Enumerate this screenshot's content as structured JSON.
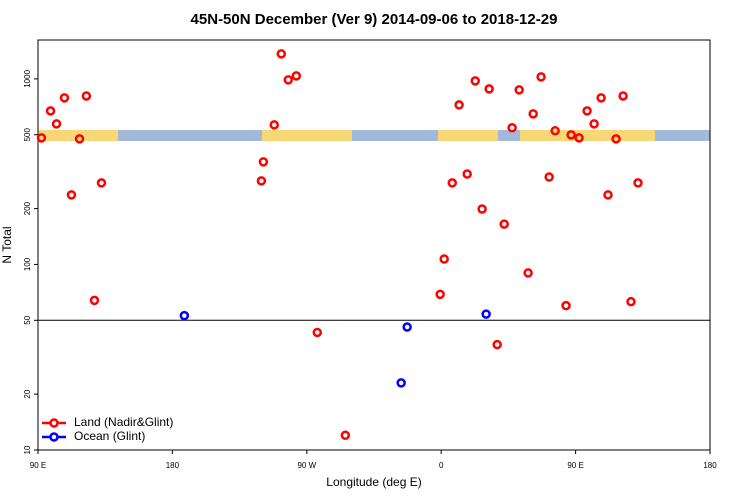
{
  "chart_data": {
    "type": "scatter",
    "title": "45N-50N December (Ver 9)   2014-09-06 to 2018-12-29",
    "x_label": "Longitude (deg E)",
    "y_label": "N Total",
    "xlim": [
      -270,
      180
    ],
    "xticks": [
      {
        "value": -270,
        "label": "90 E"
      },
      {
        "value": -180,
        "label": "180"
      },
      {
        "value": -90,
        "label": "90 W"
      },
      0,
      {
        "value": 90,
        "label": "90 E"
      },
      180
    ],
    "ylim": [
      10,
      1620
    ],
    "ylog": true,
    "yticks": [
      10,
      20,
      50,
      100,
      200,
      500,
      1000
    ],
    "hline": 50,
    "legend": "bottom-left",
    "series": [
      {
        "name": "Land (Nadir&Glint)",
        "color": "#ff0000",
        "x": [
          -267.7,
          -261.6,
          -257.6,
          -252.3,
          -247.6,
          -242.2,
          -237.6,
          -232.2,
          -227.5,
          -120.4,
          -119.1,
          -111.8,
          -107.1,
          -102.4,
          -97.0,
          -83.0,
          -64.2,
          -0.7,
          2.0,
          7.4,
          12.0,
          17.4,
          22.8,
          27.4,
          32.1,
          37.5,
          42.2,
          47.5,
          52.2,
          58.2,
          61.6,
          66.9,
          72.3,
          76.3,
          83.6,
          87.0,
          92.3,
          97.7,
          102.4,
          107.1,
          111.7,
          117.1,
          121.8,
          127.1,
          131.8
        ],
        "values": [
          481,
          672,
          572,
          790,
          237,
          475,
          809,
          64,
          275,
          282,
          357,
          565,
          1364,
          988,
          1038,
          43,
          12,
          69,
          107,
          275,
          724,
          307,
          975,
          199,
          883,
          37,
          165,
          545,
          872,
          90,
          648,
          1025,
          296,
          525,
          60,
          499,
          481,
          672,
          572,
          790,
          237,
          475,
          809,
          63,
          275
        ]
      },
      {
        "name": "Ocean (Glint)",
        "color": "#0000ff",
        "x": [
          -172.0,
          -26.8,
          -22.8,
          30.1
        ],
        "values": [
          53,
          23,
          46,
          54
        ]
      }
    ]
  }
}
